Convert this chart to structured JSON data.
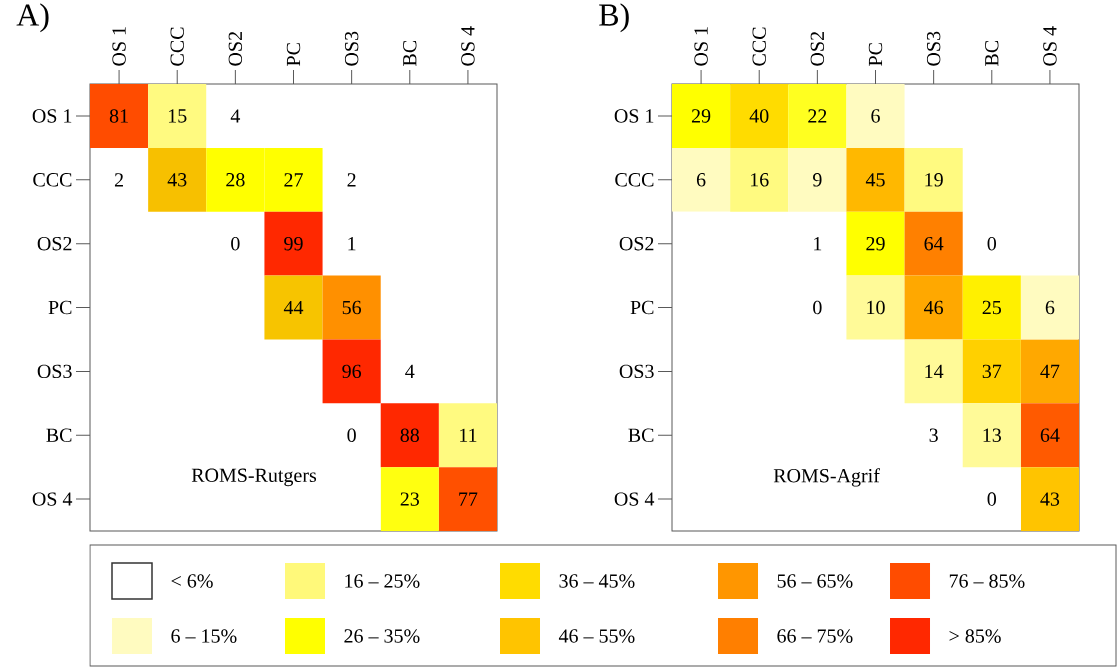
{
  "chart_data": [
    {
      "type": "heatmap",
      "title": "A)",
      "annotations": [
        "ROMS-Rutgers"
      ],
      "data_labels": true,
      "categories": [
        "OS 1",
        "CCC",
        "OS2",
        "PC",
        "OS3",
        "BC",
        "OS 4"
      ],
      "y_categories": [
        "OS 1",
        "CCC",
        "OS2",
        "PC",
        "OS3",
        "BC",
        "OS 4"
      ],
      "cells": [
        [
          81,
          15,
          4,
          null,
          null,
          null,
          null
        ],
        [
          2,
          43,
          28,
          27,
          2,
          null,
          null
        ],
        [
          null,
          null,
          0,
          99,
          1,
          null,
          null
        ],
        [
          null,
          null,
          null,
          44,
          56,
          null,
          null
        ],
        [
          null,
          null,
          null,
          null,
          96,
          4,
          null
        ],
        [
          null,
          null,
          null,
          null,
          0,
          88,
          11
        ],
        [
          null,
          null,
          null,
          null,
          null,
          23,
          77
        ]
      ],
      "colors": [
        [
          "#ff4c00",
          "#fffa80",
          "#ffffff",
          null,
          null,
          null,
          null
        ],
        [
          "#ffffff",
          "#f7c000",
          "#ffff00",
          "#ffff00",
          "#ffffff",
          null,
          null
        ],
        [
          null,
          null,
          "#ffffff",
          "#ff2800",
          "#ffffff",
          null,
          null
        ],
        [
          null,
          null,
          null,
          "#f7c400",
          "#ff9000",
          null,
          null
        ],
        [
          null,
          null,
          null,
          null,
          "#ff2800",
          "#ffffff",
          null
        ],
        [
          null,
          null,
          null,
          null,
          "#ffffff",
          "#ff2800",
          "#fffa80"
        ],
        [
          null,
          null,
          null,
          null,
          null,
          "#ffff10",
          "#ff5000"
        ]
      ]
    },
    {
      "type": "heatmap",
      "title": "B)",
      "annotations": [
        "ROMS-Agrif"
      ],
      "data_labels": true,
      "categories": [
        "OS 1",
        "CCC",
        "OS2",
        "PC",
        "OS3",
        "BC",
        "OS 4"
      ],
      "y_categories": [
        "OS 1",
        "CCC",
        "OS2",
        "PC",
        "OS3",
        "BC",
        "OS 4"
      ],
      "cells": [
        [
          29,
          40,
          22,
          6,
          null,
          null,
          null
        ],
        [
          6,
          16,
          9,
          45,
          19,
          null,
          null
        ],
        [
          null,
          null,
          1,
          29,
          64,
          0,
          null
        ],
        [
          null,
          null,
          0,
          10,
          46,
          25,
          6
        ],
        [
          null,
          null,
          null,
          null,
          14,
          37,
          47
        ],
        [
          null,
          null,
          null,
          null,
          3,
          13,
          64
        ],
        [
          null,
          null,
          null,
          null,
          null,
          0,
          43
        ]
      ],
      "colors": [
        [
          "#ffff00",
          "#ffdc00",
          "#ffff20",
          "#fffbc0",
          null,
          null,
          null
        ],
        [
          "#fffbc0",
          "#fffa80",
          "#fffbc0",
          "#ffb800",
          "#fffa80",
          null,
          null
        ],
        [
          null,
          null,
          "#ffffff",
          "#ffff00",
          "#ff8000",
          "#ffffff",
          null
        ],
        [
          null,
          null,
          "#ffffff",
          "#fffa98",
          "#ffa800",
          "#fff000",
          "#fffbc0"
        ],
        [
          null,
          null,
          null,
          null,
          "#fffa98",
          "#ffd000",
          "#ffa800"
        ],
        [
          null,
          null,
          null,
          null,
          "#ffffff",
          "#fffa98",
          "#ff5a00"
        ],
        [
          null,
          null,
          null,
          null,
          null,
          "#ffffff",
          "#ffc400"
        ]
      ]
    },
    {
      "type": "other",
      "categories": [
        "< 6%",
        "6 – 15%",
        "16 – 25%",
        "26 – 35%",
        "36 – 45%",
        "46 – 55%",
        "56 – 65%",
        "66 – 75%",
        "76 – 85%",
        "> 85%"
      ],
      "colors": [
        "#ffffff",
        "#fffbc0",
        "#fff97a",
        "#ffff00",
        "#ffdc00",
        "#ffc400",
        "#ff9600",
        "#ff7f00",
        "#ff4c00",
        "#ff2800"
      ]
    }
  ]
}
